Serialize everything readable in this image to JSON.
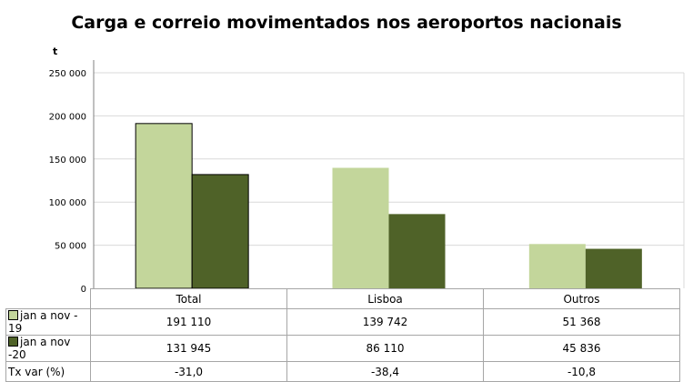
{
  "title": "Carga e correio movimentados nos aeroportos nacionais",
  "unit": "t",
  "colors": {
    "series1": "#c3d69b",
    "series2": "#4f6228",
    "grid": "#d9d9d9",
    "axis": "#808080"
  },
  "chart_data": {
    "type": "bar",
    "categories": [
      "Total",
      "Lisboa",
      "Outros"
    ],
    "series": [
      {
        "name": "jan a nov - 19",
        "values": [
          191110,
          139742,
          51368
        ]
      },
      {
        "name": "jan a nov -20",
        "values": [
          131945,
          86110,
          45836
        ]
      }
    ],
    "ylabel": "t",
    "ylim": [
      0,
      250000
    ],
    "yticks": [
      "0",
      "50 000",
      "100 000",
      "150 000",
      "200 000",
      "250 000"
    ],
    "grid": true,
    "table": {
      "rows": [
        {
          "label": "jan a nov - 19",
          "cells": [
            "191 110",
            "139 742",
            "51 368"
          ]
        },
        {
          "label": "jan a nov -20",
          "cells": [
            "131 945",
            "86 110",
            "45 836"
          ]
        },
        {
          "label": "Tx var (%)",
          "cells": [
            "-31,0",
            "-38,4",
            "-10,8"
          ]
        }
      ]
    }
  }
}
